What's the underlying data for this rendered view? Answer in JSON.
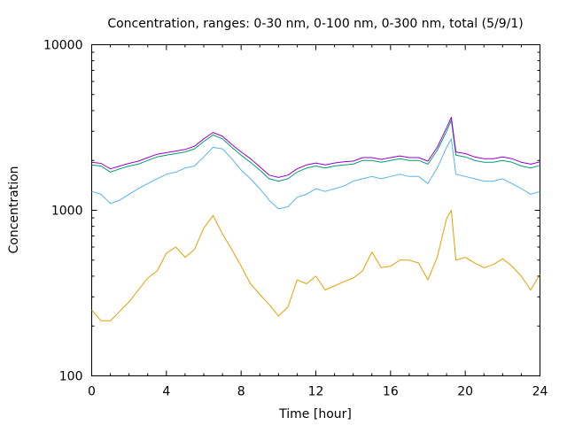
{
  "chart_data": {
    "type": "line",
    "title": "Concentration, ranges: 0-30 nm, 0-100 nm, 0-300 nm, total (5/9/1)",
    "xlabel": "Time [hour]",
    "ylabel": "Concentration",
    "xlim": [
      0,
      24
    ],
    "ylim": [
      100,
      10000
    ],
    "yscale": "log",
    "grid": false,
    "legend": "none",
    "xticks": [
      0,
      4,
      8,
      12,
      16,
      20,
      24
    ],
    "xtick_labels": [
      "0",
      "4",
      "8",
      "12",
      "16",
      "20",
      "24"
    ],
    "yticks": [
      100,
      1000,
      10000
    ],
    "ytick_labels": [
      "100",
      "1000",
      "10000"
    ],
    "x": [
      0,
      0.5,
      1,
      1.5,
      2,
      2.5,
      3,
      3.5,
      4,
      4.5,
      5,
      5.5,
      6,
      6.5,
      7,
      7.5,
      8,
      8.5,
      9,
      9.5,
      10,
      10.5,
      11,
      11.5,
      12,
      12.5,
      13,
      13.5,
      14,
      14.5,
      15,
      15.5,
      16,
      16.5,
      17,
      17.5,
      18,
      18.5,
      19,
      19.25,
      19.5,
      20,
      20.5,
      21,
      21.5,
      22,
      22.5,
      23,
      23.5,
      24
    ],
    "series": [
      {
        "color": "#e69f00",
        "values": [
          250,
          215,
          215,
          245,
          280,
          330,
          390,
          430,
          550,
          600,
          520,
          580,
          780,
          930,
          720,
          580,
          460,
          360,
          310,
          270,
          230,
          260,
          380,
          360,
          400,
          330,
          350,
          370,
          390,
          430,
          560,
          450,
          460,
          500,
          500,
          480,
          380,
          520,
          890,
          1000,
          500,
          520,
          480,
          450,
          470,
          510,
          460,
          400,
          330,
          410
        ]
      },
      {
        "color": "#56b4e9",
        "values": [
          1300,
          1250,
          1100,
          1150,
          1250,
          1350,
          1450,
          1550,
          1650,
          1700,
          1800,
          1850,
          2100,
          2400,
          2350,
          2050,
          1750,
          1550,
          1350,
          1150,
          1020,
          1050,
          1200,
          1250,
          1350,
          1300,
          1350,
          1400,
          1500,
          1550,
          1600,
          1550,
          1600,
          1650,
          1600,
          1600,
          1450,
          1800,
          2400,
          2700,
          1650,
          1600,
          1550,
          1500,
          1500,
          1550,
          1450,
          1350,
          1250,
          1300
        ]
      },
      {
        "color": "#009e73",
        "values": [
          1880,
          1850,
          1700,
          1780,
          1850,
          1900,
          2000,
          2100,
          2150,
          2200,
          2250,
          2350,
          2600,
          2850,
          2700,
          2400,
          2150,
          1950,
          1750,
          1550,
          1500,
          1550,
          1700,
          1800,
          1850,
          1800,
          1850,
          1880,
          1900,
          2000,
          2000,
          1950,
          2000,
          2050,
          2000,
          2000,
          1900,
          2300,
          3000,
          3500,
          2150,
          2100,
          2000,
          1950,
          1950,
          2000,
          1950,
          1850,
          1800,
          1870
        ]
      },
      {
        "color": "#9400d3",
        "values": [
          1950,
          1920,
          1780,
          1850,
          1920,
          1980,
          2080,
          2180,
          2230,
          2280,
          2330,
          2440,
          2700,
          2950,
          2800,
          2500,
          2250,
          2050,
          1830,
          1630,
          1580,
          1630,
          1780,
          1880,
          1930,
          1880,
          1930,
          1960,
          1980,
          2080,
          2080,
          2030,
          2080,
          2130,
          2080,
          2080,
          1980,
          2400,
          3150,
          3650,
          2250,
          2200,
          2100,
          2050,
          2050,
          2100,
          2050,
          1950,
          1900,
          1960
        ]
      }
    ]
  }
}
